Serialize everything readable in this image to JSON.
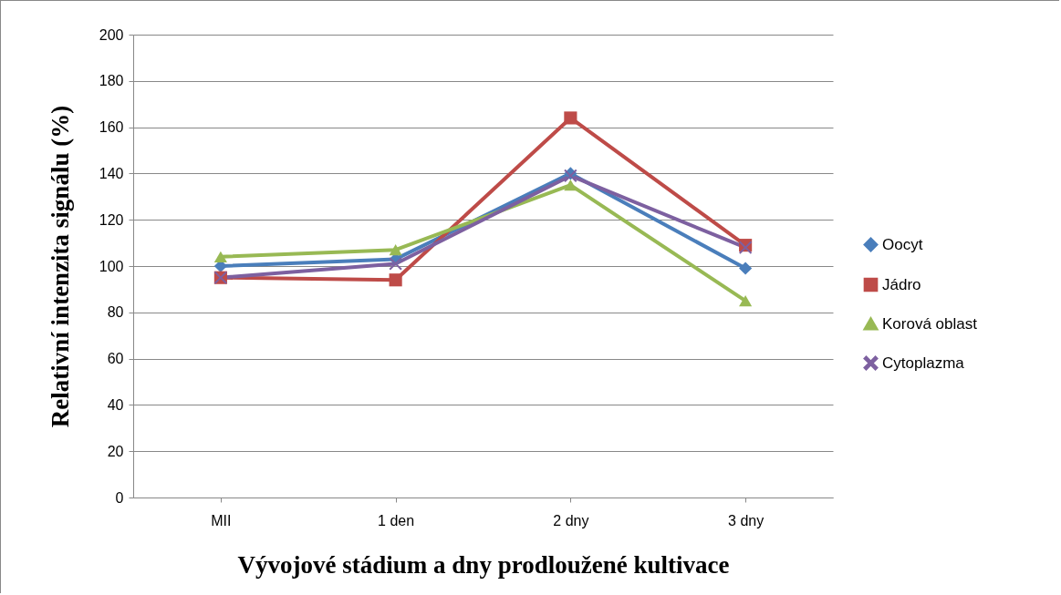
{
  "chart_data": {
    "type": "line",
    "xlabel": "Vývojové stádium a dny prodloužené kultivace",
    "ylabel": "Relativní intenzita signálu (%)",
    "categories": [
      "MII",
      "1 den",
      "2 dny",
      "3 dny"
    ],
    "series": [
      {
        "name": "Oocyt",
        "color": "#4a7ebb",
        "marker": "diamond",
        "values": [
          100,
          103,
          140,
          99
        ]
      },
      {
        "name": "Jádro",
        "color": "#be4b48",
        "marker": "square",
        "values": [
          95,
          94,
          164,
          109
        ]
      },
      {
        "name": "Korová oblast",
        "color": "#98b954",
        "marker": "triangle",
        "values": [
          104,
          107,
          135,
          85
        ]
      },
      {
        "name": "Cytoplazma",
        "color": "#7d60a0",
        "marker": "cross",
        "values": [
          95,
          101,
          139,
          108
        ]
      }
    ],
    "ylim": [
      0,
      200
    ],
    "yticks": [
      0,
      20,
      40,
      60,
      80,
      100,
      120,
      140,
      160,
      180,
      200
    ],
    "grid": "y",
    "legend": "right"
  }
}
